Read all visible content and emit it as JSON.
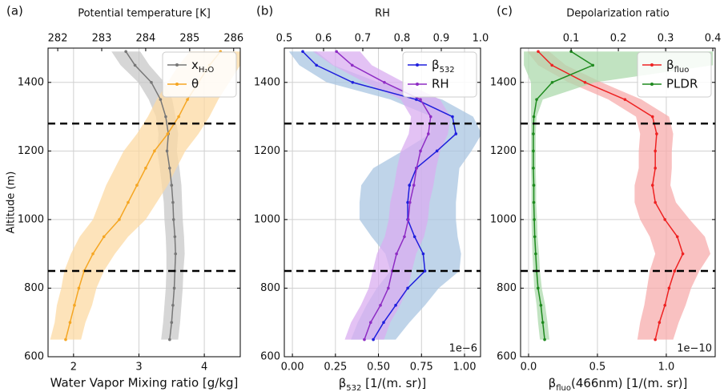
{
  "chart_data": [
    {
      "type": "profile",
      "panel_label": "(a)",
      "top_xlabel": "Potential temperature [K]",
      "xlabel": "Water Vapor Mixing ratio [g/kg]",
      "ylabel": "Altitude (m)",
      "xlim": [
        1.61,
        4.55
      ],
      "xticks": [
        2,
        3,
        4
      ],
      "x2lim": [
        281.78,
        286.15
      ],
      "x2ticks": [
        282,
        283,
        284,
        285,
        286
      ],
      "ylim": [
        600,
        1500
      ],
      "yticks": [
        600,
        800,
        1000,
        1200,
        1400
      ],
      "grid": true,
      "legend": "upper right",
      "hlines": [
        850,
        1280
      ],
      "altitude": [
        650,
        700,
        750,
        800,
        850,
        900,
        950,
        1000,
        1050,
        1100,
        1150,
        1200,
        1250,
        1300,
        1350,
        1400,
        1450,
        1490
      ],
      "series": [
        {
          "name": [
            "x",
            "H₂O"
          ],
          "color": "#777777",
          "band_color": "#c8c8c8",
          "axis": "x",
          "values": [
            3.47,
            3.5,
            3.52,
            3.54,
            3.55,
            3.56,
            3.55,
            3.53,
            3.52,
            3.5,
            3.47,
            3.43,
            3.45,
            3.41,
            3.33,
            3.19,
            2.94,
            2.8
          ],
          "lower": [
            3.34,
            3.37,
            3.39,
            3.41,
            3.42,
            3.42,
            3.41,
            3.39,
            3.38,
            3.35,
            3.32,
            3.28,
            3.3,
            3.26,
            3.15,
            2.99,
            2.72,
            2.58
          ],
          "upper": [
            3.6,
            3.63,
            3.65,
            3.67,
            3.68,
            3.7,
            3.69,
            3.67,
            3.66,
            3.65,
            3.62,
            3.58,
            3.6,
            3.56,
            3.51,
            3.39,
            3.16,
            3.02
          ]
        },
        {
          "name": "θ",
          "color": "#f5a623",
          "band_color": "#fcd9a3",
          "axis": "x2",
          "values": [
            282.18,
            282.28,
            282.38,
            282.48,
            282.6,
            282.8,
            283.05,
            283.4,
            283.6,
            283.8,
            284.0,
            284.2,
            284.5,
            284.75,
            284.95,
            285.2,
            285.45,
            285.7
          ],
          "lower": [
            281.83,
            281.93,
            281.98,
            282.08,
            282.15,
            282.3,
            282.5,
            282.8,
            282.95,
            283.1,
            283.3,
            283.5,
            283.8,
            284.05,
            284.25,
            284.5,
            284.75,
            285.0
          ],
          "upper": [
            282.53,
            282.63,
            282.78,
            282.88,
            283.05,
            283.3,
            283.6,
            284.0,
            284.25,
            284.5,
            284.7,
            284.9,
            285.2,
            285.45,
            285.65,
            285.9,
            286.15,
            286.4
          ]
        }
      ]
    },
    {
      "type": "profile",
      "panel_label": "(b)",
      "top_xlabel": "RH",
      "xlabel": [
        "β",
        "532",
        " [1/(m. sr)]"
      ],
      "x_offset_label": "1e−6",
      "xlim": [
        -0.047,
        1.093
      ],
      "xticks": [
        {
          "value": 0,
          "label": "0.00"
        },
        {
          "value": 0.25,
          "label": "0.25"
        },
        {
          "value": 0.5,
          "label": "0.50"
        },
        {
          "value": 0.75,
          "label": "0.75"
        },
        {
          "value": 1,
          "label": "1.00"
        }
      ],
      "x2lim": [
        0.5,
        1.0
      ],
      "x2ticks": [
        0.5,
        0.6,
        0.7,
        0.8,
        0.9,
        {
          "value": 1,
          "label": "1.0"
        }
      ],
      "ylim": [
        600,
        1500
      ],
      "yticks": [
        600,
        800,
        1000,
        1200,
        1400
      ],
      "grid": true,
      "legend": "upper right",
      "hlines": [
        850,
        1280
      ],
      "altitude": [
        650,
        700,
        750,
        800,
        850,
        900,
        950,
        1000,
        1050,
        1100,
        1150,
        1200,
        1250,
        1300,
        1350,
        1400,
        1450,
        1490
      ],
      "series": [
        {
          "name": [
            "β",
            "532"
          ],
          "color": "#1f1fdd",
          "band_color": "#a9c6e2",
          "axis": "x",
          "values": [
            0.47,
            0.53,
            0.6,
            0.67,
            0.77,
            0.76,
            0.71,
            0.67,
            0.67,
            0.68,
            0.72,
            0.84,
            0.95,
            0.93,
            0.72,
            0.35,
            0.14,
            0.06
          ],
          "lower": [
            0.34,
            0.38,
            0.43,
            0.49,
            0.57,
            0.54,
            0.46,
            0.39,
            0.39,
            0.4,
            0.47,
            0.64,
            0.8,
            0.81,
            0.57,
            0.2,
            0.04,
            -0.02
          ],
          "upper": [
            0.6,
            0.68,
            0.77,
            0.85,
            0.97,
            0.98,
            0.96,
            0.95,
            0.95,
            0.96,
            0.97,
            1.04,
            1.1,
            1.05,
            0.87,
            0.5,
            0.24,
            0.14
          ]
        },
        {
          "name": "RH",
          "color": "#8e2cc4",
          "band_color": "#d9aef0",
          "axis": "x2",
          "values": [
            0.704,
            0.72,
            0.745,
            0.765,
            0.775,
            0.786,
            0.806,
            0.816,
            0.82,
            0.83,
            0.837,
            0.847,
            0.867,
            0.873,
            0.847,
            0.755,
            0.673,
            0.633
          ],
          "lower": [
            0.654,
            0.67,
            0.695,
            0.715,
            0.725,
            0.736,
            0.756,
            0.766,
            0.77,
            0.78,
            0.787,
            0.797,
            0.817,
            0.823,
            0.797,
            0.705,
            0.623,
            0.573
          ],
          "upper": [
            0.754,
            0.77,
            0.795,
            0.815,
            0.825,
            0.836,
            0.856,
            0.866,
            0.87,
            0.88,
            0.887,
            0.897,
            0.917,
            0.923,
            0.897,
            0.805,
            0.723,
            0.693
          ]
        }
      ]
    },
    {
      "type": "profile",
      "panel_label": "(c)",
      "top_xlabel": "Depolarization ratio",
      "xlabel": [
        "β",
        "fluo",
        "(466nm) [1/(m. sr)]"
      ],
      "x_offset_label": "1e−10",
      "xlim": [
        -0.058,
        1.355
      ],
      "xticks": [
        {
          "value": 0,
          "label": "0.0"
        },
        0.5,
        {
          "value": 1,
          "label": "1.0"
        }
      ],
      "x2lim": [
        -0.007,
        0.405
      ],
      "x2ticks": [
        0.1,
        0.2,
        0.3,
        0.4
      ],
      "ylim": [
        600,
        1500
      ],
      "yticks": [
        600,
        800,
        1000,
        1200,
        1400
      ],
      "grid": true,
      "legend": "upper right",
      "hlines": [
        850,
        1280
      ],
      "altitude": [
        650,
        700,
        750,
        800,
        850,
        900,
        950,
        1000,
        1050,
        1100,
        1150,
        1200,
        1250,
        1300,
        1350,
        1400,
        1450,
        1490
      ],
      "series": [
        {
          "name": [
            "β",
            "fluo"
          ],
          "color": "#ee2222",
          "band_color": "#f7acac",
          "axis": "x",
          "values": [
            0.92,
            0.95,
            0.99,
            1.02,
            1.06,
            1.12,
            1.08,
            0.99,
            0.92,
            0.9,
            0.92,
            0.92,
            0.93,
            0.9,
            0.7,
            0.41,
            0.17,
            0.07
          ],
          "lower": [
            0.79,
            0.81,
            0.84,
            0.86,
            0.88,
            0.92,
            0.88,
            0.81,
            0.77,
            0.77,
            0.8,
            0.8,
            0.81,
            0.78,
            0.58,
            0.29,
            0.07,
            -0.01
          ],
          "upper": [
            1.05,
            1.09,
            1.14,
            1.18,
            1.24,
            1.32,
            1.28,
            1.17,
            1.07,
            1.03,
            1.04,
            1.04,
            1.05,
            1.02,
            0.82,
            0.53,
            0.27,
            0.15
          ]
        },
        {
          "name": "PLDR",
          "color": "#1e8a1e",
          "band_color": "#acd9ac",
          "axis": "x2",
          "values": [
            0.044,
            0.04,
            0.036,
            0.03,
            0.027,
            0.025,
            0.023,
            0.022,
            0.021,
            0.021,
            0.02,
            0.02,
            0.02,
            0.021,
            0.027,
            0.06,
            0.146,
            0.1
          ],
          "lower": [
            0.034,
            0.03,
            0.027,
            0.022,
            0.02,
            0.018,
            0.017,
            0.016,
            0.016,
            0.016,
            0.015,
            0.015,
            0.015,
            0.015,
            0.015,
            0.015,
            0.0,
            0.0
          ],
          "upper": [
            0.054,
            0.05,
            0.045,
            0.038,
            0.034,
            0.032,
            0.029,
            0.028,
            0.026,
            0.026,
            0.025,
            0.025,
            0.025,
            0.027,
            0.04,
            0.15,
            0.4,
            0.4
          ]
        }
      ]
    }
  ]
}
